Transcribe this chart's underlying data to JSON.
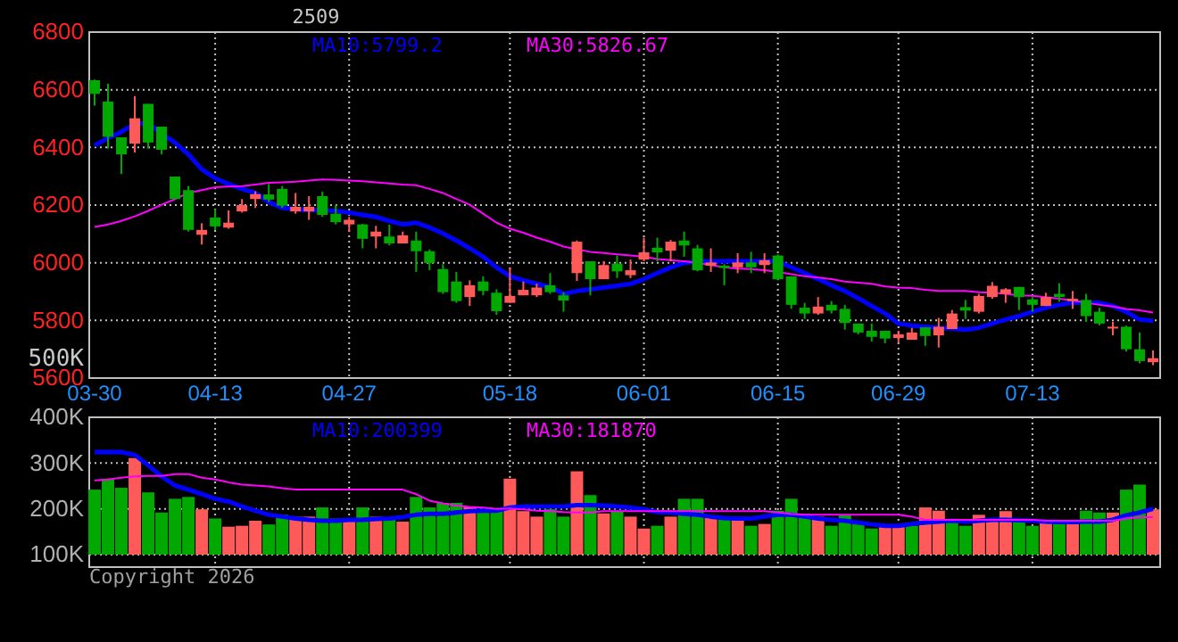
{
  "chart_data": [
    {
      "type": "candlestick",
      "title": "2509",
      "annotations": [
        "MA10:5799.2",
        "MA30:5826.67"
      ],
      "categories": [
        "03-30",
        null,
        null,
        null,
        null,
        null,
        null,
        null,
        null,
        "04-13",
        null,
        null,
        null,
        null,
        null,
        null,
        null,
        null,
        null,
        "04-27",
        null,
        null,
        null,
        null,
        null,
        null,
        null,
        null,
        null,
        null,
        null,
        "05-18",
        null,
        null,
        null,
        null,
        null,
        null,
        null,
        null,
        null,
        "06-01",
        null,
        null,
        null,
        null,
        null,
        null,
        null,
        null,
        null,
        "06-15",
        null,
        null,
        null,
        null,
        null,
        null,
        null,
        null,
        "06-29",
        null,
        null,
        null,
        null,
        null,
        null,
        null,
        null,
        null,
        "07-13",
        null,
        null,
        null,
        null,
        null,
        null,
        null,
        null,
        null
      ],
      "ohlc": [
        [
          6633,
          6635,
          6545,
          6586
        ],
        [
          6559,
          6621,
          6396,
          6437
        ],
        [
          6435,
          6435,
          6308,
          6376
        ],
        [
          6413,
          6578,
          6382,
          6501
        ],
        [
          6551,
          6551,
          6396,
          6417
        ],
        [
          6472,
          6472,
          6376,
          6392
        ],
        [
          6299,
          6299,
          6221,
          6221
        ],
        [
          6252,
          6266,
          6108,
          6114
        ],
        [
          6097,
          6137,
          6063,
          6114
        ],
        [
          6157,
          6186,
          6114,
          6126
        ],
        [
          6122,
          6182,
          6118,
          6139
        ],
        [
          6178,
          6221,
          6174,
          6200
        ],
        [
          6221,
          6248,
          6190,
          6238
        ],
        [
          6237,
          6273,
          6211,
          6219
        ],
        [
          6256,
          6266,
          6190,
          6198
        ],
        [
          6178,
          6242,
          6170,
          6194
        ],
        [
          6178,
          6231,
          6149,
          6194
        ],
        [
          6231,
          6246,
          6159,
          6166
        ],
        [
          6170,
          6201,
          6133,
          6141
        ],
        [
          6133,
          6159,
          6108,
          6149
        ],
        [
          6133,
          6135,
          6050,
          6083
        ],
        [
          6091,
          6128,
          6050,
          6108
        ],
        [
          6091,
          6132,
          6060,
          6067
        ],
        [
          6067,
          6108,
          6067,
          6095
        ],
        [
          6077,
          6108,
          5968,
          6040
        ],
        [
          6040,
          6046,
          5974,
          5999
        ],
        [
          5978,
          5995,
          5892,
          5898
        ],
        [
          5935,
          5968,
          5861,
          5867
        ],
        [
          5881,
          5939,
          5850,
          5922
        ],
        [
          5935,
          5953,
          5887,
          5902
        ],
        [
          5896,
          5908,
          5819,
          5832
        ],
        [
          5861,
          5984,
          5861,
          5885
        ],
        [
          5887,
          5935,
          5887,
          5906
        ],
        [
          5887,
          5927,
          5881,
          5914
        ],
        [
          5922,
          5964,
          5892,
          5898
        ],
        [
          5887,
          5898,
          5830,
          5869
        ],
        [
          5964,
          6077,
          5937,
          6073
        ],
        [
          6005,
          6005,
          5887,
          5943
        ],
        [
          5943,
          6005,
          5943,
          5992
        ],
        [
          5997,
          6025,
          5947,
          5970
        ],
        [
          5957,
          6011,
          5947,
          5974
        ],
        [
          6011,
          6087,
          6005,
          6036
        ],
        [
          6052,
          6087,
          6005,
          6036
        ],
        [
          6042,
          6079,
          6005,
          6073
        ],
        [
          6077,
          6108,
          6021,
          6060
        ],
        [
          6050,
          6062,
          5970,
          5974
        ],
        [
          5990,
          6050,
          5968,
          6001
        ],
        [
          5990,
          5995,
          5922,
          5982
        ],
        [
          5984,
          6033,
          5964,
          6001
        ],
        [
          6001,
          6038,
          5964,
          5984
        ],
        [
          5992,
          6033,
          5964,
          6009
        ],
        [
          6025,
          6029,
          5939,
          5943
        ],
        [
          5953,
          5953,
          5840,
          5854
        ],
        [
          5844,
          5861,
          5805,
          5824
        ],
        [
          5824,
          5881,
          5819,
          5848
        ],
        [
          5854,
          5867,
          5824,
          5834
        ],
        [
          5840,
          5854,
          5768,
          5791
        ],
        [
          5789,
          5789,
          5752,
          5758
        ],
        [
          5764,
          5789,
          5727,
          5743
        ],
        [
          5764,
          5764,
          5721,
          5737
        ],
        [
          5739,
          5764,
          5721,
          5752
        ],
        [
          5733,
          5774,
          5733,
          5758
        ],
        [
          5776,
          5776,
          5712,
          5746
        ],
        [
          5748,
          5809,
          5706,
          5778
        ],
        [
          5770,
          5836,
          5770,
          5824
        ],
        [
          5846,
          5871,
          5805,
          5834
        ],
        [
          5830,
          5892,
          5824,
          5885
        ],
        [
          5881,
          5933,
          5875,
          5920
        ],
        [
          5892,
          5912,
          5861,
          5908
        ],
        [
          5916,
          5916,
          5836,
          5881
        ],
        [
          5873,
          5881,
          5830,
          5854
        ],
        [
          5850,
          5896,
          5850,
          5881
        ],
        [
          5892,
          5929,
          5865,
          5881
        ],
        [
          5867,
          5902,
          5840,
          5875
        ],
        [
          5871,
          5892,
          5795,
          5815
        ],
        [
          5830,
          5844,
          5783,
          5789
        ],
        [
          5772,
          5795,
          5748,
          5778
        ],
        [
          5778,
          5782,
          5692,
          5700
        ],
        [
          5700,
          5758,
          5651,
          5659
        ],
        [
          5655,
          5696,
          5645,
          5669
        ]
      ],
      "series": [
        {
          "type": "line",
          "color": "#0000ff",
          "values": [
            6407,
            6433,
            6454,
            6483,
            6483,
            6448,
            6417,
            6376,
            6324,
            6293,
            6273,
            6256,
            6242,
            6211,
            6190,
            6186,
            6182,
            6182,
            6180,
            6174,
            6166,
            6159,
            6145,
            6133,
            6139,
            6122,
            6102,
            6077,
            6050,
            6021,
            5984,
            5953,
            5939,
            5927,
            5916,
            5892,
            5902,
            5908,
            5914,
            5920,
            5927,
            5943,
            5964,
            5984,
            5999,
            6005,
            6005,
            6005,
            6005,
            6005,
            6005,
            6005,
            5984,
            5964,
            5943,
            5922,
            5902,
            5877,
            5850,
            5824,
            5789,
            5782,
            5778,
            5774,
            5772,
            5768,
            5774,
            5789,
            5803,
            5815,
            5830,
            5844,
            5854,
            5861,
            5861,
            5861,
            5850,
            5830,
            5803,
            5799
          ]
        },
        {
          "type": "line",
          "color": "#ff00ff",
          "values": [
            6124,
            6133,
            6145,
            6161,
            6180,
            6201,
            6221,
            6242,
            6252,
            6262,
            6264,
            6266,
            6271,
            6277,
            6279,
            6281,
            6285,
            6289,
            6287,
            6285,
            6283,
            6279,
            6275,
            6271,
            6269,
            6256,
            6242,
            6221,
            6201,
            6170,
            6139,
            6118,
            6104,
            6087,
            6073,
            6056,
            6046,
            6038,
            6034,
            6029,
            6025,
            6021,
            6013,
            6009,
            6005,
            5999,
            5992,
            5984,
            5980,
            5978,
            5974,
            5968,
            5960,
            5953,
            5949,
            5943,
            5935,
            5931,
            5927,
            5918,
            5914,
            5912,
            5906,
            5902,
            5902,
            5902,
            5898,
            5896,
            5892,
            5887,
            5885,
            5881,
            5875,
            5869,
            5861,
            5854,
            5848,
            5840,
            5835,
            5827
          ]
        }
      ],
      "ylim": [
        5600,
        6800
      ],
      "yticks": [
        5600,
        5800,
        6000,
        6200,
        6400,
        6600,
        6800
      ],
      "grid": true
    },
    {
      "type": "bar",
      "annotations": [
        "MA10:200399",
        "MA30:181870",
        "Copyright 2026",
        "500K"
      ],
      "categories": [
        null,
        null,
        null,
        null,
        null,
        null,
        null,
        null,
        null,
        null,
        null,
        null,
        null,
        null,
        null,
        null,
        null,
        null,
        null,
        null,
        null,
        null,
        null,
        null,
        null,
        null,
        null,
        null,
        null,
        null,
        null,
        null,
        null,
        null,
        null,
        null,
        null,
        null,
        null,
        null,
        null,
        null,
        null,
        null,
        null,
        null,
        null,
        null,
        null,
        null,
        null,
        null,
        null,
        null,
        null,
        null,
        null,
        null,
        null,
        null,
        null,
        null,
        null,
        null,
        null,
        null,
        null,
        null,
        null,
        null,
        null,
        null,
        null,
        null,
        null,
        null,
        null,
        null,
        null,
        null
      ],
      "series": [
        {
          "type": "bar",
          "values": [
            242000,
            266000,
            246000,
            311000,
            236000,
            192000,
            222000,
            226000,
            199000,
            179000,
            161000,
            163000,
            174000,
            166000,
            187000,
            183000,
            183000,
            203000,
            179000,
            172000,
            203000,
            183000,
            176000,
            172000,
            226000,
            203000,
            213000,
            213000,
            205000,
            196000,
            196000,
            266000,
            195000,
            183000,
            199000,
            183000,
            282000,
            230000,
            190000,
            195000,
            183000,
            157000,
            163000,
            183000,
            222000,
            222000,
            183000,
            179000,
            180000,
            163000,
            167000,
            196000,
            222000,
            189000,
            183000,
            163000,
            187000,
            172000,
            157000,
            163000,
            163000,
            163000,
            203000,
            196000,
            176000,
            163000,
            187000,
            176000,
            195000,
            176000,
            163000,
            170000,
            170000,
            167000,
            196000,
            192000,
            192000,
            242000,
            253000,
            199000
          ],
          "colors": [
            "#00a800",
            "#00a800",
            "#00a800",
            "#ff5a5a",
            "#00a800",
            "#00a800",
            "#00a800",
            "#00a800",
            "#ff5a5a",
            "#00a800",
            "#ff5a5a",
            "#ff5a5a",
            "#ff5a5a",
            "#00a800",
            "#00a800",
            "#ff5a5a",
            "#ff5a5a",
            "#00a800",
            "#00a800",
            "#ff5a5a",
            "#00a800",
            "#ff5a5a",
            "#00a800",
            "#ff5a5a",
            "#00a800",
            "#00a800",
            "#00a800",
            "#00a800",
            "#ff5a5a",
            "#00a800",
            "#00a800",
            "#ff5a5a",
            "#ff5a5a",
            "#ff5a5a",
            "#00a800",
            "#00a800",
            "#ff5a5a",
            "#00a800",
            "#ff5a5a",
            "#00a800",
            "#ff5a5a",
            "#ff5a5a",
            "#00a800",
            "#ff5a5a",
            "#00a800",
            "#00a800",
            "#ff5a5a",
            "#00a800",
            "#ff5a5a",
            "#00a800",
            "#ff5a5a",
            "#00a800",
            "#00a800",
            "#00a800",
            "#ff5a5a",
            "#00a800",
            "#00a800",
            "#00a800",
            "#00a800",
            "#ff5a5a",
            "#ff5a5a",
            "#00a800",
            "#ff5a5a",
            "#ff5a5a",
            "#00a800",
            "#00a800",
            "#ff5a5a",
            "#ff5a5a",
            "#ff5a5a",
            "#00a800",
            "#00a800",
            "#ff5a5a",
            "#00a800",
            "#ff5a5a",
            "#00a800",
            "#00a800",
            "#ff5a5a",
            "#00a800",
            "#00a800",
            "#ff5a5a"
          ]
        },
        {
          "type": "line",
          "color": "#0000ff",
          "values": [
            324000,
            324000,
            324000,
            318000,
            295000,
            271000,
            251000,
            242000,
            232000,
            222000,
            216000,
            205000,
            196000,
            187000,
            183000,
            179000,
            176000,
            174000,
            174000,
            176000,
            176000,
            178000,
            179000,
            182000,
            187000,
            189000,
            189000,
            192000,
            195000,
            196000,
            196000,
            203000,
            205000,
            205000,
            205000,
            205000,
            208000,
            208000,
            207000,
            205000,
            203000,
            199000,
            193000,
            192000,
            189000,
            187000,
            183000,
            180000,
            179000,
            179000,
            183000,
            187000,
            187000,
            183000,
            179000,
            176000,
            174000,
            170000,
            166000,
            163000,
            163000,
            167000,
            170000,
            172000,
            174000,
            172000,
            174000,
            176000,
            176000,
            175000,
            174000,
            172000,
            171000,
            171000,
            172000,
            172000,
            176000,
            186000,
            192000,
            200000
          ]
        },
        {
          "type": "line",
          "color": "#ff00ff",
          "values": [
            262000,
            264000,
            268000,
            271000,
            272000,
            272000,
            276000,
            276000,
            268000,
            264000,
            258000,
            253000,
            251000,
            249000,
            245000,
            242000,
            242000,
            242000,
            242000,
            242000,
            242000,
            242000,
            242000,
            242000,
            232000,
            218000,
            212000,
            207000,
            204000,
            203000,
            200000,
            201000,
            199000,
            196000,
            195000,
            193000,
            192000,
            192000,
            195000,
            195000,
            195000,
            195000,
            195000,
            195000,
            195000,
            195000,
            195000,
            195000,
            195000,
            195000,
            195000,
            192000,
            189000,
            187000,
            187000,
            187000,
            187000,
            187000,
            187000,
            187000,
            187000,
            183000,
            176000,
            176000,
            176000,
            176000,
            176000,
            176000,
            176000,
            176000,
            176000,
            174000,
            174000,
            174000,
            174000,
            174000,
            174000,
            179000,
            182000,
            182000
          ]
        }
      ],
      "ylim": [
        100000,
        400000
      ],
      "yticks": [
        {
          "value": 100000,
          "label": "100K"
        },
        {
          "value": 200000,
          "label": "200K"
        },
        {
          "value": 300000,
          "label": "300K"
        },
        {
          "value": 400000,
          "label": "400K"
        }
      ],
      "grid": true,
      "tick_labels": "y"
    }
  ]
}
